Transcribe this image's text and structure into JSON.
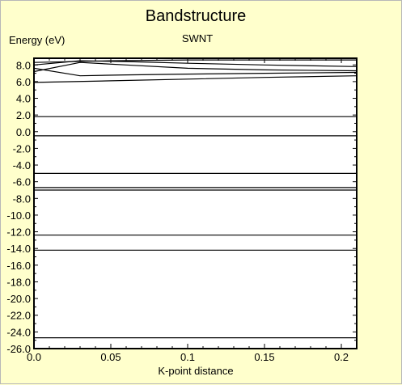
{
  "chart_data": {
    "type": "line",
    "title": "Bandstructure",
    "subtitle": "SWNT",
    "ylabel": "Energy (eV)",
    "xlabel": "K-point distance",
    "xlim": [
      0.0,
      0.21
    ],
    "ylim": [
      -26.0,
      8.8
    ],
    "xticks": [
      0.0,
      0.05,
      0.1,
      0.15,
      0.2
    ],
    "xtick_labels": [
      "0.0",
      "0.05",
      "0.1",
      "0.15",
      "0.2"
    ],
    "yticks": [
      8.0,
      6.0,
      4.0,
      2.0,
      0.0,
      -2.0,
      -4.0,
      -6.0,
      -8.0,
      -10.0,
      -12.0,
      -14.0,
      -16.0,
      -18.0,
      -20.0,
      -22.0,
      -24.0,
      -26.0
    ],
    "ytick_labels": [
      "8.0",
      "6.0",
      "4.0",
      "2.0",
      "0.0",
      "-2.0",
      "-4.0",
      "-6.0",
      "-8.0",
      "-10.0",
      "-12.0",
      "-14.0",
      "-16.0",
      "-18.0",
      "-20.0",
      "-22.0",
      "-24.0",
      "-26.0"
    ],
    "grid": false,
    "colors": {
      "line": "#000000",
      "plot_bg": "#ffffff",
      "page_bg": "#ffffcc"
    },
    "series": [
      {
        "x": [
          0.0,
          0.21
        ],
        "values": [
          -24.7,
          -24.7
        ]
      },
      {
        "x": [
          0.0,
          0.21
        ],
        "values": [
          -14.2,
          -14.2
        ]
      },
      {
        "x": [
          0.0,
          0.21
        ],
        "values": [
          -12.4,
          -12.4
        ]
      },
      {
        "x": [
          0.0,
          0.21
        ],
        "values": [
          -7.0,
          -7.0
        ]
      },
      {
        "x": [
          0.0,
          0.21
        ],
        "values": [
          -6.7,
          -6.7
        ]
      },
      {
        "x": [
          0.0,
          0.21
        ],
        "values": [
          -5.0,
          -5.0
        ]
      },
      {
        "x": [
          0.0,
          0.21
        ],
        "values": [
          -0.5,
          -0.5
        ]
      },
      {
        "x": [
          0.0,
          0.21
        ],
        "values": [
          1.8,
          1.8
        ]
      },
      {
        "x": [
          0.0,
          0.05,
          0.1,
          0.15,
          0.21
        ],
        "values": [
          5.9,
          6.1,
          6.3,
          6.5,
          6.7
        ]
      },
      {
        "x": [
          0.0,
          0.03,
          0.06,
          0.1,
          0.15,
          0.21
        ],
        "values": [
          7.6,
          6.7,
          6.8,
          6.9,
          7.0,
          7.1
        ]
      },
      {
        "x": [
          0.0,
          0.03,
          0.06,
          0.1,
          0.15,
          0.21
        ],
        "values": [
          7.2,
          8.3,
          8.0,
          7.6,
          7.4,
          7.3
        ]
      },
      {
        "x": [
          0.0,
          0.03,
          0.06,
          0.1,
          0.15,
          0.21
        ],
        "values": [
          8.0,
          8.5,
          8.4,
          8.2,
          8.0,
          7.8
        ]
      },
      {
        "x": [
          0.0,
          0.05,
          0.1,
          0.15,
          0.21
        ],
        "values": [
          8.3,
          8.5,
          8.6,
          8.6,
          8.6
        ]
      }
    ]
  }
}
